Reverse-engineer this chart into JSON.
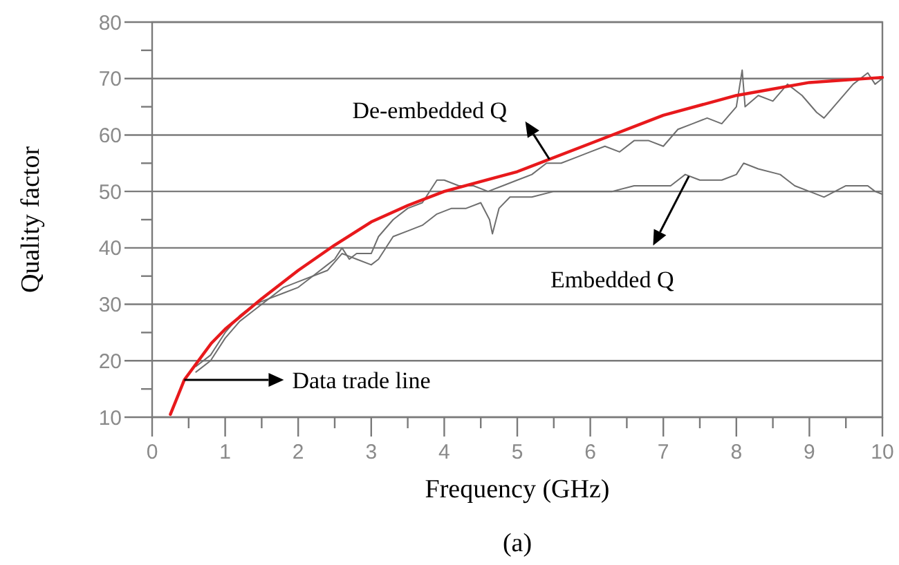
{
  "chart_data": {
    "type": "line",
    "xlabel": "Frequency (GHz)",
    "ylabel": "Quality factor",
    "annotations": [
      "(a)",
      {
        "text": "Data trade line",
        "x": 0.44,
        "y": 16.6
      }
    ],
    "xlim": [
      0,
      10
    ],
    "ylim": [
      10,
      80
    ],
    "xticks": [
      0,
      {
        "value": 0.5,
        "label": null
      },
      1,
      {
        "value": 1.5,
        "label": null
      },
      2,
      {
        "value": 2.5,
        "label": null
      },
      3,
      {
        "value": 3.5,
        "label": null
      },
      4,
      {
        "value": 4.5,
        "label": null
      },
      5,
      {
        "value": 5.5,
        "label": null
      },
      6,
      {
        "value": 6.5,
        "label": null
      },
      7,
      {
        "value": 7.5,
        "label": null
      },
      8,
      {
        "value": 8.5,
        "label": null
      },
      9,
      {
        "value": 9.5,
        "label": null
      },
      10
    ],
    "yticks": [
      10,
      {
        "value": 15,
        "label": null
      },
      20,
      {
        "value": 25,
        "label": null
      },
      30,
      {
        "value": 35,
        "label": null
      },
      40,
      {
        "value": 45,
        "label": null
      },
      50,
      {
        "value": 55,
        "label": null
      },
      60,
      {
        "value": 65,
        "label": null
      },
      70,
      {
        "value": 75,
        "label": null
      },
      80
    ],
    "grid": "y",
    "legend": false,
    "marker": "none",
    "line_style": "solid",
    "series": [
      {
        "name": "De-embedded Q",
        "color": "#6e6e6e",
        "x": [
          0.6,
          0.8,
          1.0,
          1.2,
          1.4,
          1.6,
          1.8,
          2.0,
          2.2,
          2.4,
          2.5,
          2.6,
          2.7,
          2.8,
          3.0,
          3.1,
          3.3,
          3.5,
          3.7,
          3.9,
          4.0,
          4.2,
          4.4,
          4.6,
          4.8,
          5.0,
          5.2,
          5.4,
          5.6,
          5.8,
          6.0,
          6.2,
          6.4,
          6.6,
          6.8,
          7.0,
          7.2,
          7.4,
          7.6,
          7.8,
          8.0,
          8.08,
          8.12,
          8.3,
          8.5,
          8.7,
          8.9,
          9.1,
          9.2,
          9.4,
          9.6,
          9.8,
          9.9,
          10
        ],
        "values": [
          19,
          21,
          25,
          28,
          30,
          31,
          33,
          34,
          35,
          37,
          38,
          40,
          38,
          39,
          39,
          42,
          45,
          47,
          48,
          52,
          52,
          51,
          51,
          50,
          51,
          52,
          53,
          55,
          55,
          56,
          57,
          58,
          57,
          59,
          59,
          58,
          61,
          62,
          63,
          62,
          65,
          71.5,
          65,
          67,
          66,
          69,
          67,
          64,
          63,
          66,
          69,
          71,
          69,
          70
        ]
      },
      {
        "name": "Embedded Q",
        "color": "#6e6e6e",
        "x": [
          0.6,
          0.8,
          1.0,
          1.2,
          1.4,
          1.6,
          1.8,
          2.0,
          2.2,
          2.4,
          2.6,
          2.8,
          3.0,
          3.1,
          3.3,
          3.5,
          3.7,
          3.9,
          4.1,
          4.3,
          4.5,
          4.62,
          4.66,
          4.75,
          4.9,
          5.2,
          5.5,
          5.8,
          6.0,
          6.3,
          6.6,
          6.9,
          7.1,
          7.3,
          7.5,
          7.8,
          8.0,
          8.1,
          8.3,
          8.6,
          8.8,
          9.0,
          9.2,
          9.5,
          9.8,
          9.9,
          10
        ],
        "values": [
          18,
          20,
          24,
          27,
          29,
          31,
          32,
          33,
          35,
          36,
          39,
          38,
          37,
          38,
          42,
          43,
          44,
          46,
          47,
          47,
          48,
          45,
          42.5,
          47,
          49,
          49,
          50,
          50,
          50,
          50,
          51,
          51,
          51,
          53,
          52,
          52,
          53,
          55,
          54,
          53,
          51,
          50,
          49,
          51,
          51,
          50,
          49.5
        ]
      },
      {
        "color": "#e8191c",
        "x": [
          0.25,
          0.44,
          0.81,
          1.0,
          1.5,
          2.0,
          2.5,
          3.0,
          3.5,
          4.0,
          5.0,
          6.0,
          7.0,
          8.0,
          9.0,
          10.0
        ],
        "values": [
          10.5,
          16.6,
          23.1,
          25.6,
          31,
          36,
          40.5,
          44.6,
          47.5,
          50,
          53.5,
          58.5,
          63.5,
          67,
          69.3,
          70.2
        ]
      }
    ]
  }
}
